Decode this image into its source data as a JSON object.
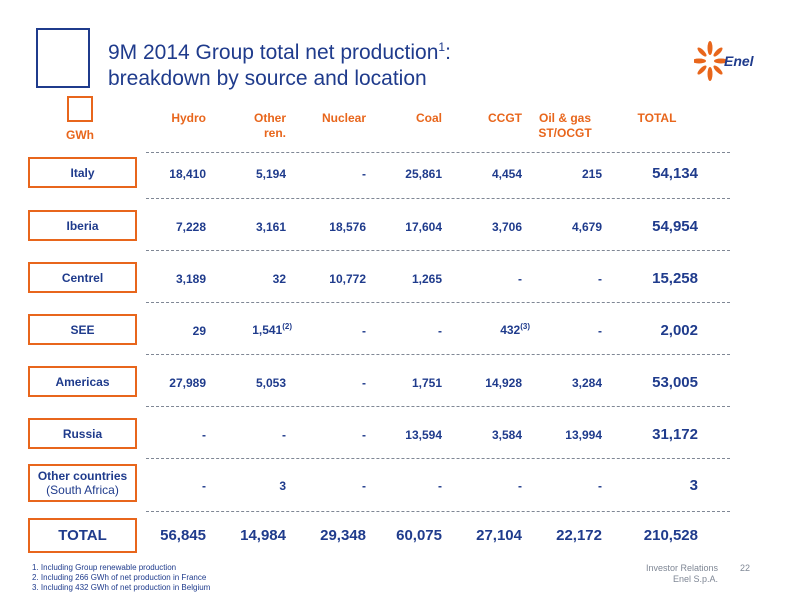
{
  "title": {
    "line1": "9M 2014 Group total net production",
    "sup": "1",
    "line1_end": ":",
    "line2": "breakdown by source and location"
  },
  "logo": {
    "text": "Enel"
  },
  "unit": "GWh",
  "headers": {
    "hydro": "Hydro",
    "other_ren_1": "Other",
    "other_ren_2": "ren.",
    "nuclear": "Nuclear",
    "coal": "Coal",
    "ccgt": "CCGT",
    "oil_1": "Oil & gas",
    "oil_2": "ST/OCGT",
    "total": "TOTAL"
  },
  "rows": [
    {
      "label": "Italy",
      "hydro": "18,410",
      "other": "5,194",
      "nuclear": "-",
      "coal": "25,861",
      "ccgt": "4,454",
      "oil": "215",
      "total": "54,134"
    },
    {
      "label": "Iberia",
      "hydro": "7,228",
      "other": "3,161",
      "nuclear": "18,576",
      "coal": "17,604",
      "ccgt": "3,706",
      "oil": "4,679",
      "total": "54,954"
    },
    {
      "label": "Centrel",
      "hydro": "3,189",
      "other": "32",
      "nuclear": "10,772",
      "coal": "1,265",
      "ccgt": "-",
      "oil": "-",
      "total": "15,258"
    },
    {
      "label": "SEE",
      "hydro": "29",
      "other": "1,541",
      "other_sup": "(2)",
      "nuclear": "-",
      "coal": "-",
      "ccgt": "432",
      "ccgt_sup": "(3)",
      "oil": "-",
      "total": "2,002"
    },
    {
      "label": "Americas",
      "hydro": "27,989",
      "other": "5,053",
      "nuclear": "-",
      "coal": "1,751",
      "ccgt": "14,928",
      "oil": "3,284",
      "total": "53,005"
    },
    {
      "label": "Russia",
      "hydro": "-",
      "other": "-",
      "nuclear": "-",
      "coal": "13,594",
      "ccgt": "3,584",
      "oil": "13,994",
      "total": "31,172"
    },
    {
      "label": "Other countries",
      "sublabel": "(South Africa)",
      "hydro": "-",
      "other": "3",
      "nuclear": "-",
      "coal": "-",
      "ccgt": "-",
      "oil": "-",
      "total": "3"
    }
  ],
  "grand_total": {
    "label": "TOTAL",
    "hydro": "56,845",
    "other": "14,984",
    "nuclear": "29,348",
    "coal": "60,075",
    "ccgt": "27,104",
    "oil": "22,172",
    "total": "210,528"
  },
  "footnotes": [
    "1. Including Group renewable production",
    "2. Including 266 GWh of net production in France",
    "3. Including 432 GWh of net production in Belgium"
  ],
  "footer": {
    "line1": "Investor Relations",
    "line2": "Enel S.p.A.",
    "page": "22"
  }
}
